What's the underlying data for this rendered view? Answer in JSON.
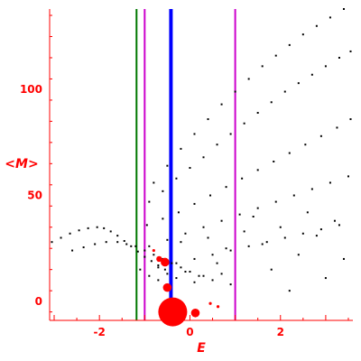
{
  "chart_data": {
    "type": "scatter",
    "xlabel": "E",
    "ylabel": "<M>",
    "xlim": [
      -3.1,
      3.6
    ],
    "ylim": [
      -9,
      138
    ],
    "x_ticks": [
      {
        "value": -2,
        "label": "-2"
      },
      {
        "value": 0,
        "label": "0"
      },
      {
        "value": 2,
        "label": "2"
      }
    ],
    "y_ticks": [
      {
        "value": 0,
        "label": "0"
      },
      {
        "value": 50,
        "label": "50"
      },
      {
        "value": 100,
        "label": "100"
      }
    ],
    "grid": false,
    "vertical_lines": [
      {
        "x": -1.18,
        "color": "#007700",
        "style": "thin"
      },
      {
        "x": -1.0,
        "color": "#cc00cc",
        "style": "thin"
      },
      {
        "x": -0.42,
        "color": "#0000ff",
        "style": "thick"
      },
      {
        "x": 1.0,
        "color": "#cc00cc",
        "style": "thin"
      }
    ],
    "series": [
      {
        "color": "#000000",
        "marker": "dot",
        "x": [
          -3.05,
          -2.85,
          -2.65,
          -2.45,
          -2.25,
          -2.05,
          -1.9,
          -1.75,
          -1.6,
          -1.45,
          -1.3,
          -1.15,
          -1.0,
          -0.85,
          -0.7,
          -0.55,
          -2.6,
          -2.35,
          -2.1,
          -1.85,
          -1.6,
          -1.4,
          -1.2,
          -1.0,
          -0.8,
          -0.6,
          -0.4,
          -0.2,
          0.0,
          0.2,
          -0.8,
          -0.5,
          -0.2,
          0.1,
          0.4,
          0.7,
          1.0,
          1.3,
          1.6,
          1.9,
          2.2,
          2.5,
          2.8,
          3.1,
          3.4,
          -0.9,
          -0.6,
          -0.3,
          0.0,
          0.3,
          0.6,
          0.9,
          1.2,
          1.5,
          1.8,
          2.1,
          2.4,
          2.7,
          3.0,
          3.3,
          3.55,
          -0.95,
          -0.6,
          -0.25,
          0.1,
          0.45,
          0.8,
          1.15,
          1.5,
          1.85,
          2.2,
          2.55,
          2.9,
          3.25,
          3.55,
          -0.9,
          -0.5,
          -0.1,
          0.3,
          0.7,
          1.1,
          1.5,
          1.9,
          2.3,
          2.7,
          3.1,
          3.5,
          -0.7,
          -0.3,
          0.1,
          0.5,
          0.9,
          1.3,
          1.7,
          2.1,
          2.5,
          2.9,
          3.3,
          -1.1,
          -0.9,
          -0.7,
          -0.5,
          -0.3,
          -0.1,
          0.1,
          0.3,
          0.5,
          0.7,
          -0.2,
          0.4,
          0.8,
          1.2,
          1.6,
          2.0,
          2.4,
          2.8,
          3.2,
          0.6,
          1.4,
          1.8,
          2.6,
          3.4,
          0.9,
          2.2,
          3.0
        ],
        "y": [
          28,
          30,
          32,
          33.5,
          34.5,
          35,
          34.5,
          33,
          31,
          28.5,
          26,
          23.5,
          21,
          19,
          17,
          15,
          24,
          25.5,
          27,
          28,
          28,
          27,
          26,
          24,
          22,
          20,
          18,
          16,
          14,
          12,
          56,
          64,
          72,
          79,
          86,
          93,
          99,
          105,
          111,
          116,
          121,
          126,
          130,
          134,
          138,
          47,
          52,
          58,
          63,
          68,
          74,
          79,
          84,
          89,
          94,
          99,
          103,
          107,
          111,
          115,
          118,
          36,
          39,
          42,
          46,
          50,
          54,
          58,
          62,
          66,
          70,
          74,
          78,
          82,
          86,
          26,
          29,
          32,
          35,
          38,
          41,
          44,
          47,
          50,
          53,
          56,
          59,
          16,
          18,
          20,
          22,
          24,
          26,
          28,
          30,
          32,
          34,
          36,
          15,
          12,
          10,
          13,
          11,
          14,
          9,
          12,
          10,
          13,
          28,
          30,
          25,
          33,
          27,
          35,
          22,
          31,
          38,
          18,
          40,
          15,
          42,
          20,
          8,
          5,
          11
        ]
      },
      {
        "color": "#ff0000",
        "marker": "circle",
        "x": [
          -0.38,
          -0.5,
          0.12,
          -0.55,
          -0.68,
          -0.8,
          0.45,
          0.62
        ],
        "y": [
          -5,
          6.5,
          -5.5,
          18.5,
          20,
          24,
          -1,
          -2.5
        ],
        "size": [
          10,
          3,
          3,
          3,
          2,
          1,
          1,
          1
        ]
      }
    ]
  }
}
